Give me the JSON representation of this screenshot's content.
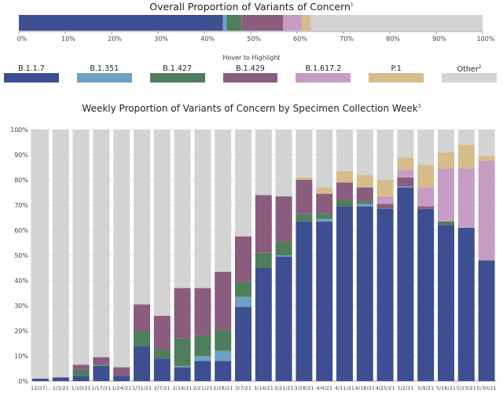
{
  "overall_title": "Overall Proportion of Variants of Concern",
  "overall_title_note": "1",
  "weekly_title": "Weekly Proportion of Variants of Concern by Specimen Collection Week",
  "weekly_title_note": "3",
  "legend_caption": "Hover to Highlight",
  "colors": {
    "B.1.1.7": "#3d4f91",
    "B.1.351": "#6fa1c5",
    "B.1.427": "#4e7e5c",
    "B.1.429": "#8a5c7e",
    "B.1.617.2": "#c79cc3",
    "P.1": "#d6bc8a",
    "Other": "#d3d3d3"
  },
  "legend": [
    {
      "label": "B.1.1.7",
      "key": "B.1.1.7",
      "note": ""
    },
    {
      "label": "B.1.351",
      "key": "B.1.351",
      "note": ""
    },
    {
      "label": "B.1.427",
      "key": "B.1.427",
      "note": ""
    },
    {
      "label": "B.1.429",
      "key": "B.1.429",
      "note": ""
    },
    {
      "label": "B.1.617.2",
      "key": "B.1.617.2",
      "note": ""
    },
    {
      "label": "P.1",
      "key": "P.1",
      "note": ""
    },
    {
      "label": "Other",
      "key": "Other",
      "note": "2"
    }
  ],
  "chart_data": [
    {
      "type": "bar",
      "stacked": true,
      "orientation": "horizontal",
      "title": "Overall Proportion of Variants of Concern",
      "xlim": [
        0,
        100
      ],
      "x_ticks": [
        "0%",
        "10%",
        "20%",
        "30%",
        "40%",
        "50%",
        "60%",
        "70%",
        "80%",
        "90%",
        "100%"
      ],
      "segments": [
        {
          "name": "B.1.1.7",
          "value": 44
        },
        {
          "name": "B.1.351",
          "value": 0.8
        },
        {
          "name": "B.1.427",
          "value": 3.2
        },
        {
          "name": "B.1.429",
          "value": 9
        },
        {
          "name": "B.1.617.2",
          "value": 4
        },
        {
          "name": "P.1",
          "value": 2
        },
        {
          "name": "Other",
          "value": 37
        }
      ]
    },
    {
      "type": "bar",
      "stacked": true,
      "title": "Weekly Proportion of Variants of Concern by Specimen Collection Week",
      "ylim": [
        0,
        100
      ],
      "y_ticks": [
        "0%",
        "10%",
        "20%",
        "30%",
        "40%",
        "50%",
        "60%",
        "70%",
        "80%",
        "90%",
        "100%"
      ],
      "categories": [
        "12/27/..",
        "1/3/21",
        "1/10/21",
        "1/17/21",
        "1/24/21",
        "1/31/21",
        "2/7/21",
        "2/14/21",
        "2/21/21",
        "2/28/21",
        "3/7/21",
        "3/14/21",
        "3/21/21",
        "3/28/21",
        "4/4/21",
        "4/11/21",
        "4/18/21",
        "4/25/21",
        "5/2/21",
        "5/9/21",
        "5/16/21",
        "5/23/21",
        "5/30/21"
      ],
      "series": [
        {
          "name": "B.1.1.7",
          "values": [
            1,
            1.5,
            2,
            6,
            2,
            14,
            9,
            5.5,
            8,
            8,
            29.5,
            45,
            49.5,
            63.5,
            63.5,
            69.5,
            69.5,
            68.5,
            77,
            68.5,
            62,
            61,
            48
          ]
        },
        {
          "name": "B.1.351",
          "values": [
            0,
            0,
            0,
            0,
            0,
            0,
            0,
            0.5,
            2,
            4,
            4,
            0,
            0.5,
            0,
            1,
            0,
            1,
            0,
            0.5,
            0,
            0,
            0,
            0
          ]
        },
        {
          "name": "B.1.427",
          "values": [
            0,
            0,
            2.5,
            0.5,
            0,
            6,
            3.5,
            11,
            8,
            8.5,
            6,
            6,
            5.5,
            3,
            2,
            2.5,
            1,
            0,
            0,
            0,
            1.5,
            0,
            0
          ]
        },
        {
          "name": "B.1.429",
          "values": [
            0,
            0,
            2,
            3,
            3.5,
            10.5,
            13.5,
            20,
            19,
            23,
            18,
            23,
            18,
            13.5,
            8,
            7,
            5.5,
            2,
            3.5,
            1,
            0,
            0,
            0
          ]
        },
        {
          "name": "B.1.617.2",
          "values": [
            0,
            0,
            0,
            0,
            0,
            0,
            0,
            0,
            0,
            0,
            0,
            0,
            0,
            0,
            0,
            0,
            0,
            3,
            3,
            7.5,
            21,
            23.5,
            39.5
          ]
        },
        {
          "name": "P.1",
          "values": [
            0,
            0,
            0,
            0,
            0,
            0,
            0,
            0,
            0,
            0,
            0,
            0,
            0,
            1,
            2.5,
            4.5,
            5,
            6.5,
            5,
            9,
            6.5,
            9.5,
            2
          ]
        },
        {
          "name": "Other",
          "values": [
            99,
            98.5,
            93.5,
            90.5,
            94.5,
            69.5,
            74,
            63,
            63,
            56.5,
            42.5,
            26,
            26.5,
            19,
            23,
            16.5,
            18,
            20,
            11,
            14,
            9,
            6,
            10.5
          ]
        }
      ]
    }
  ]
}
